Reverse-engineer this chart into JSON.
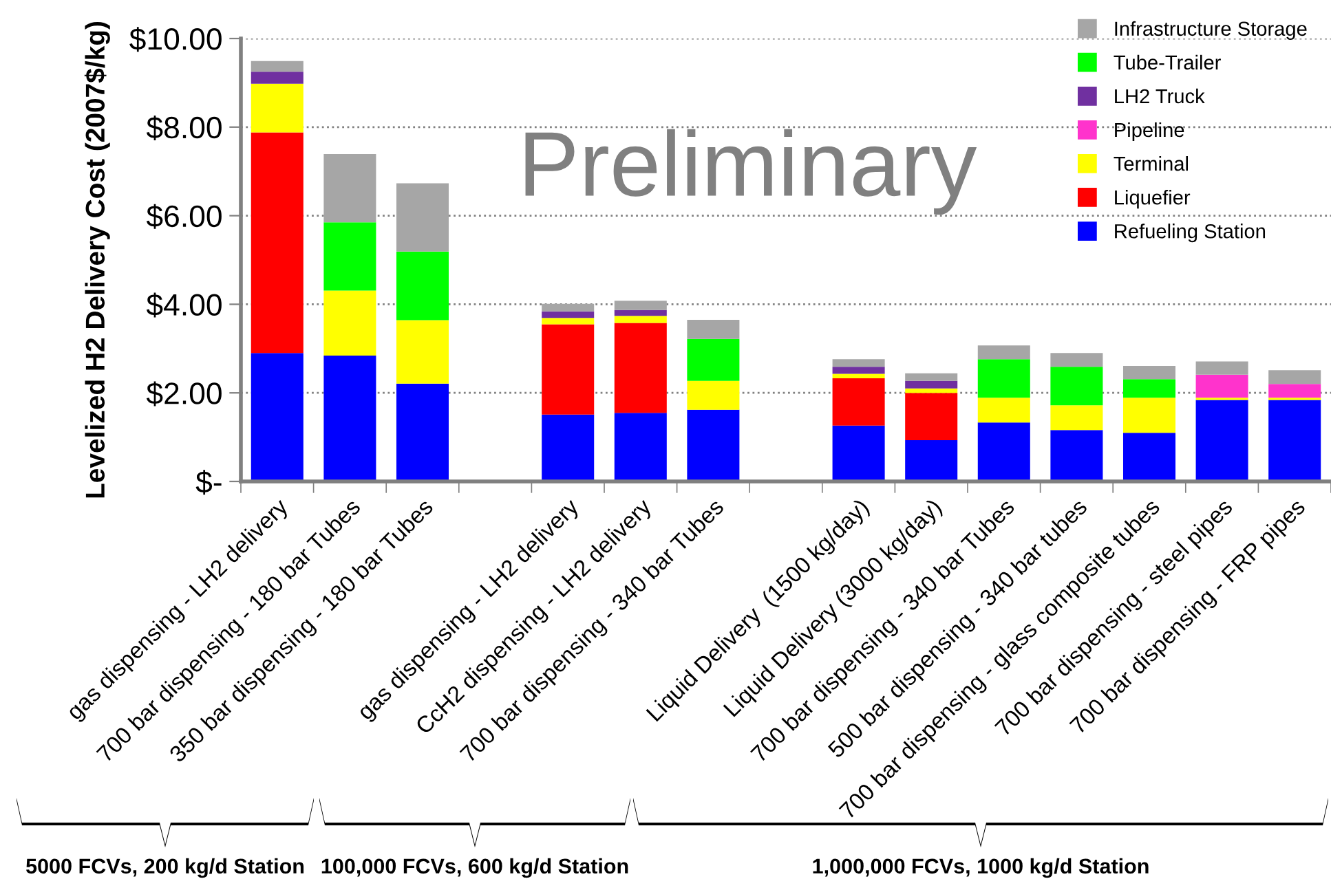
{
  "chart_data": {
    "type": "bar",
    "stacked": true,
    "ylabel": "Levelized H2 Delivery Cost (2007$/kg)",
    "categories": [
      "gas dispensing - LH2 delivery",
      "700 bar dispensing - 180 bar Tubes",
      "350 bar dispensing - 180 bar Tubes",
      null,
      "gas dispensing - LH2 delivery",
      "CcH2 dispensing - LH2 delivery",
      "700 bar dispensing - 340 bar Tubes",
      null,
      "Liquid Delivery  (1500 kg/day)",
      "Liquid Delivery (3000 kg/day)",
      "700 bar dispensing - 340 bar Tubes",
      "500 bar dispensing - 340 bar tubes",
      "700 bar dispensing - glass composite tubes",
      "700 bar dispensing - steel pipes",
      "700 bar dispensing - FRP pipes"
    ],
    "series": [
      {
        "name": "Refueling Station",
        "color": "#0000ff",
        "values": [
          2.9,
          2.84,
          2.21,
          null,
          1.51,
          1.55,
          1.62,
          null,
          1.26,
          0.93,
          1.33,
          1.16,
          1.1,
          1.84,
          1.84
        ]
      },
      {
        "name": "Liquefier",
        "color": "#ff0000",
        "values": [
          4.98,
          0,
          0,
          null,
          2.04,
          2.03,
          0,
          null,
          1.07,
          1.07,
          0,
          0,
          0,
          0,
          0
        ]
      },
      {
        "name": "Terminal",
        "color": "#ffff00",
        "values": [
          1.1,
          1.47,
          1.43,
          null,
          0.14,
          0.16,
          0.65,
          null,
          0.1,
          0.1,
          0.56,
          0.56,
          0.79,
          0.05,
          0.05
        ]
      },
      {
        "name": "Pipeline",
        "color": "#ff33cc",
        "values": [
          0,
          0,
          0,
          null,
          0,
          0,
          0,
          null,
          0,
          0,
          0,
          0,
          0,
          0.52,
          0.31
        ]
      },
      {
        "name": "LH2 Truck",
        "color": "#7030a0",
        "values": [
          0.27,
          0,
          0,
          null,
          0.15,
          0.13,
          0,
          null,
          0.16,
          0.17,
          0,
          0,
          0,
          0,
          0
        ]
      },
      {
        "name": "Tube-Trailer",
        "color": "#00ff00",
        "values": [
          0,
          1.54,
          1.55,
          null,
          0,
          0,
          0.95,
          null,
          0,
          0,
          0.87,
          0.87,
          0.42,
          0,
          0
        ]
      },
      {
        "name": "Infrastructure Storage",
        "color": "#a6a6a6",
        "values": [
          0.24,
          1.54,
          1.54,
          null,
          0.17,
          0.21,
          0.43,
          null,
          0.17,
          0.17,
          0.31,
          0.31,
          0.3,
          0.3,
          0.31
        ]
      }
    ],
    "ylim": [
      0,
      10
    ],
    "yticks": [
      {
        "value": 0,
        "label": "$-"
      },
      {
        "value": 2,
        "label": "$2.00"
      },
      {
        "value": 4,
        "label": "$4.00"
      },
      {
        "value": 6,
        "label": "$6.00"
      },
      {
        "value": 8,
        "label": "$8.00"
      },
      {
        "value": 10,
        "label": "$10.00"
      }
    ],
    "grid": "y",
    "legend": "top right",
    "annotations": [
      "Preliminary",
      "5000 FCVs, 200 kg/d Station",
      "100,000 FCVs, 600 kg/d Station",
      "1,000,000 FCVs, 1000 kg/d Station"
    ]
  }
}
